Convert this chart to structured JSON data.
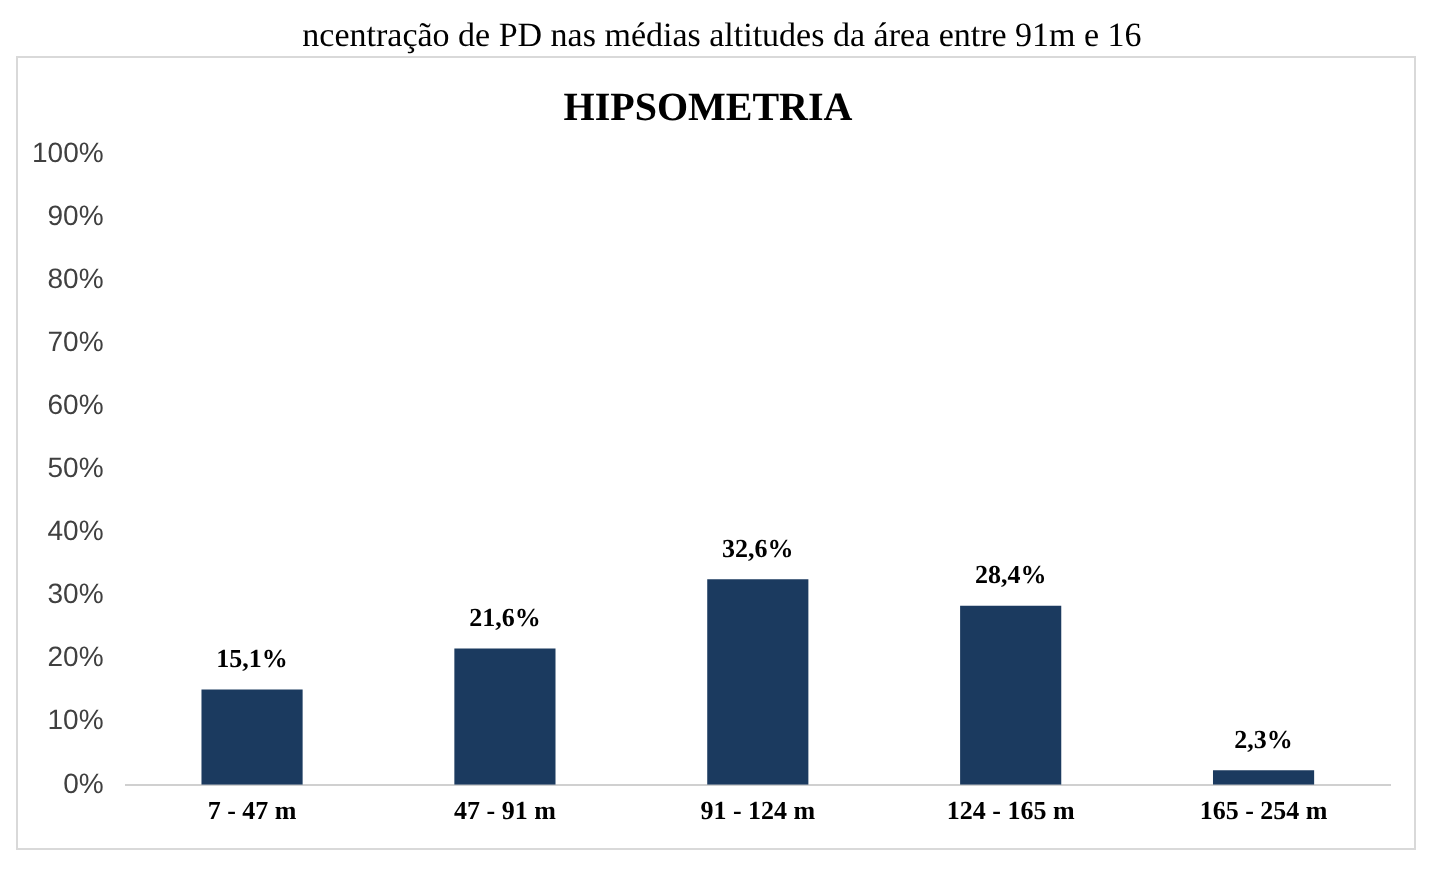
{
  "chart_data": {
    "type": "bar",
    "title": "HIPSOMETRIA",
    "annotations": [
      "ncentração de PD nas médias altitudes da área entre 91m e 16"
    ],
    "categories": [
      "7 - 47 m",
      "47 - 91 m",
      "91 - 124 m",
      "124 - 165 m",
      "165 - 254 m"
    ],
    "values": [
      15.1,
      21.6,
      32.6,
      28.4,
      2.3
    ],
    "value_labels": [
      "15,1%",
      "21,6%",
      "32,6%",
      "28,4%",
      "2,3%"
    ],
    "color": "#1b3a5f",
    "ylim": [
      0,
      100
    ],
    "yticks": [
      {
        "value": 0,
        "label": "0%"
      },
      {
        "value": 10,
        "label": "10%"
      },
      {
        "value": 20,
        "label": "20%"
      },
      {
        "value": 30,
        "label": "30%"
      },
      {
        "value": 40,
        "label": "40%"
      },
      {
        "value": 50,
        "label": "50%"
      },
      {
        "value": 60,
        "label": "60%"
      },
      {
        "value": 70,
        "label": "70%"
      },
      {
        "value": 80,
        "label": "80%"
      },
      {
        "value": 90,
        "label": "90%"
      },
      {
        "value": 100,
        "label": "100%"
      }
    ],
    "grid": false,
    "legend": false
  }
}
